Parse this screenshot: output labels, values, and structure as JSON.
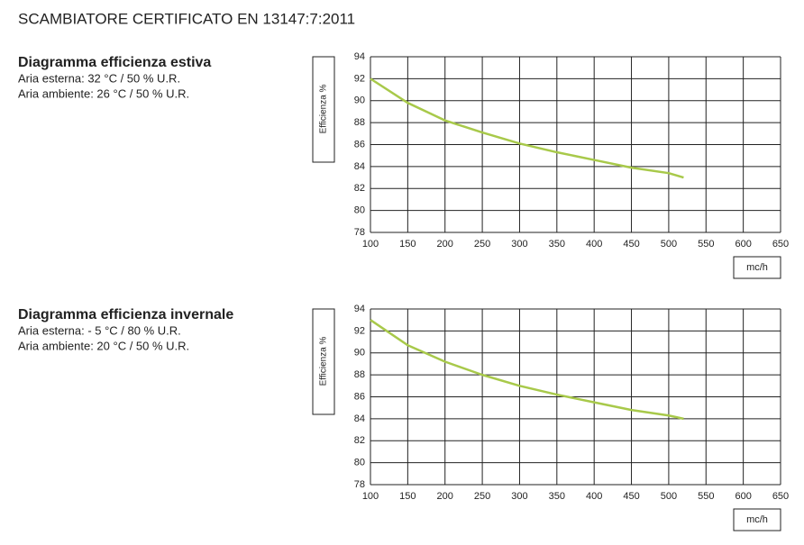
{
  "title": "SCAMBIATORE CERTIFICATO EN 13147:7:2011",
  "chart_data": [
    {
      "type": "line",
      "title": "Diagramma efficienza estiva",
      "annotations": [
        "Aria esterna: 32 °C / 50 % U.R.",
        "Aria ambiente: 26 °C / 50 % U.R."
      ],
      "y_label": "Efficienza  %",
      "x_label": "mc/h",
      "x": [
        100,
        150,
        200,
        250,
        300,
        350,
        400,
        450,
        500,
        520
      ],
      "series": [
        {
          "name": "Efficienza",
          "color": "#a8c94a",
          "values": [
            92,
            89.8,
            88.2,
            87.1,
            86.1,
            85.3,
            84.6,
            83.9,
            83.4,
            83.0
          ]
        }
      ],
      "xlim": [
        100,
        650
      ],
      "xticks": [
        100,
        150,
        200,
        250,
        300,
        350,
        400,
        450,
        500,
        550,
        600,
        650
      ],
      "ylim": [
        78,
        94
      ],
      "yticks": [
        78,
        80,
        82,
        84,
        86,
        88,
        90,
        92,
        94
      ],
      "grid": true
    },
    {
      "type": "line",
      "title": "Diagramma efficienza invernale",
      "annotations": [
        "Aria esterna: - 5 °C / 80 % U.R.",
        "Aria ambiente: 20 °C / 50 % U.R."
      ],
      "y_label": "Efficienza  %",
      "x_label": "mc/h",
      "x": [
        100,
        150,
        200,
        250,
        300,
        350,
        400,
        450,
        500,
        520
      ],
      "series": [
        {
          "name": "Efficienza",
          "color": "#a8c94a",
          "values": [
            93,
            90.7,
            89.2,
            88.0,
            87.0,
            86.2,
            85.5,
            84.8,
            84.3,
            84.0
          ]
        }
      ],
      "xlim": [
        100,
        650
      ],
      "xticks": [
        100,
        150,
        200,
        250,
        300,
        350,
        400,
        450,
        500,
        550,
        600,
        650
      ],
      "ylim": [
        78,
        94
      ],
      "yticks": [
        78,
        80,
        82,
        84,
        86,
        88,
        90,
        92,
        94
      ],
      "grid": true
    }
  ]
}
